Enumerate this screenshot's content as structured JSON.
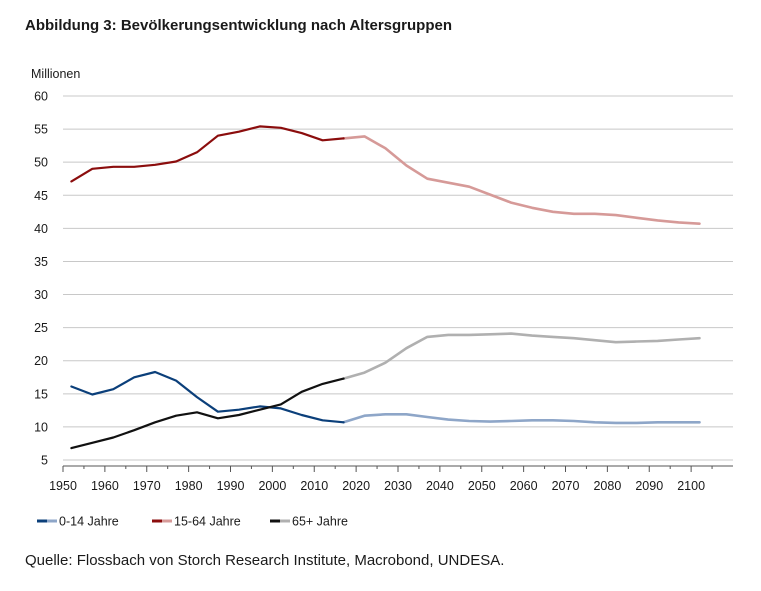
{
  "title": "Abbildung 3: Bevölkerungsentwicklung nach Altersgruppen",
  "source": "Quelle: Flossbach von Storch Research Institute, Macrobond, UNDESA.",
  "chart_data": {
    "type": "line",
    "title": "Abbildung 3: Bevölkerungsentwicklung nach Altersgruppen",
    "ylabel": "Millionen",
    "xlabel": "",
    "xlim": [
      1950,
      2110
    ],
    "ylim": [
      5,
      60
    ],
    "x_ticks": [
      1950,
      1960,
      1970,
      1980,
      1990,
      2000,
      2010,
      2020,
      2030,
      2040,
      2050,
      2060,
      2070,
      2080,
      2090,
      2100
    ],
    "y_ticks": [
      5,
      10,
      15,
      20,
      25,
      30,
      35,
      40,
      45,
      50,
      55,
      60
    ],
    "grid": "horizontal",
    "legend_position": "bottom-left",
    "historical_end_year": 2017,
    "x": [
      1952,
      1957,
      1962,
      1967,
      1972,
      1977,
      1982,
      1987,
      1992,
      1997,
      2002,
      2007,
      2012,
      2017,
      2022,
      2027,
      2032,
      2037,
      2042,
      2047,
      2052,
      2057,
      2062,
      2067,
      2072,
      2077,
      2082,
      2087,
      2092,
      2097,
      2102
    ],
    "series": [
      {
        "name": "0-14 Jahre",
        "color": "#0b3f7a",
        "forecast_color": "#8ea6c8",
        "values": [
          16.1,
          14.9,
          15.7,
          17.5,
          18.3,
          17.0,
          14.5,
          12.3,
          12.6,
          13.1,
          12.8,
          11.8,
          11.0,
          10.7,
          11.7,
          11.9,
          11.9,
          11.5,
          11.1,
          10.9,
          10.8,
          10.9,
          11.0,
          11.0,
          10.9,
          10.7,
          10.6,
          10.6,
          10.7,
          10.7,
          10.7
        ]
      },
      {
        "name": "15-64 Jahre",
        "color": "#8b0d0d",
        "forecast_color": "#d69a98",
        "values": [
          47.1,
          49.0,
          49.3,
          49.3,
          49.6,
          50.1,
          51.5,
          54.0,
          54.6,
          55.4,
          55.2,
          54.4,
          53.3,
          53.6,
          53.9,
          52.1,
          49.5,
          47.5,
          46.9,
          46.3,
          45.1,
          43.9,
          43.1,
          42.5,
          42.2,
          42.2,
          42.0,
          41.6,
          41.2,
          40.9,
          40.7
        ]
      },
      {
        "name": "65+ Jahre",
        "color": "#111111",
        "forecast_color": "#b0b0b0",
        "values": [
          6.8,
          7.6,
          8.4,
          9.5,
          10.7,
          11.7,
          12.2,
          11.3,
          11.8,
          12.6,
          13.4,
          15.3,
          16.5,
          17.3,
          18.2,
          19.7,
          21.9,
          23.6,
          23.9,
          23.9,
          24.0,
          24.1,
          23.8,
          23.6,
          23.4,
          23.1,
          22.8,
          22.9,
          23.0,
          23.2,
          23.4
        ]
      }
    ]
  }
}
